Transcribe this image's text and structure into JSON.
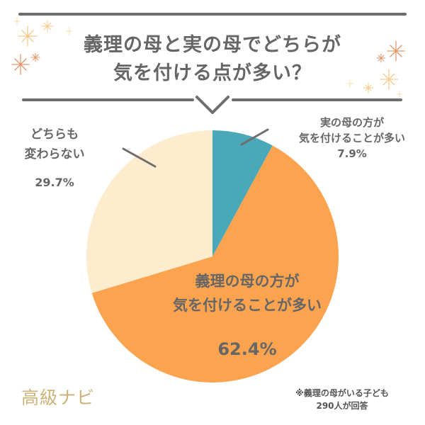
{
  "header": {
    "title_line1": "義理の母と実の母でどちらが",
    "title_line2": "気を付ける点が多い？",
    "decor": [
      "sparkle-icon",
      "chevron-down-icon"
    ]
  },
  "chart_data": {
    "type": "pie",
    "title": "義理の母と実の母でどちらが気を付ける点が多い？",
    "start_angle": "12 o'clock, clockwise",
    "categories": [
      "実の母の方が気を付けることが多い",
      "義理の母の方が気を付けることが多い",
      "どちらも変わらない"
    ],
    "values": [
      7.9,
      62.4,
      29.7
    ],
    "unit": "%",
    "colors": [
      "#4ba8b8",
      "#fba34f",
      "#fdecce"
    ],
    "note": "※義理の母がいる子ども290人が回答"
  },
  "labels": {
    "teal": {
      "line1": "実の母の方が",
      "line2": "気を付けることが多い",
      "pct": "7.9%"
    },
    "orange": {
      "line1": "義理の母の方が",
      "line2": "気を付けることが多い",
      "pct": "62.4%"
    },
    "cream": {
      "line1": "どちらも",
      "line2": "変わらない",
      "pct": "29.7%"
    }
  },
  "footer": {
    "brand": "高級ナビ",
    "note_line1": "※義理の母がいる子ども",
    "note_line2": "290人が回答"
  },
  "colors": {
    "rule": "#6e6e6e",
    "text": "#666666",
    "sparkle_light": "#f3c98a",
    "sparkle_dark": "#e0976a",
    "brand": "#cdb27a"
  }
}
